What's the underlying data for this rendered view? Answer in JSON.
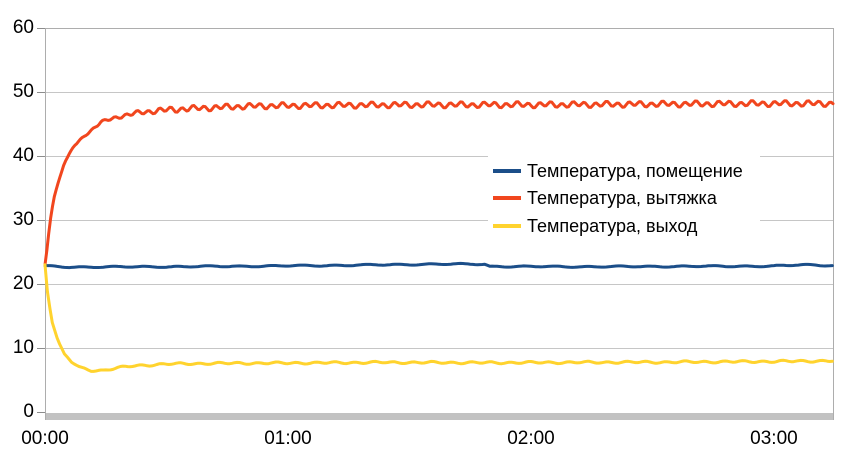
{
  "chart_data": {
    "type": "line",
    "title": "",
    "x_axis": {
      "kind": "time-of-day",
      "tick_labels": [
        "00:00",
        "01:00",
        "02:00",
        "03:00"
      ],
      "tick_hours": [
        0,
        1,
        2,
        3
      ],
      "range_hours": [
        0,
        3.243
      ],
      "gridlines": false
    },
    "y_axis": {
      "min": 0,
      "max": 60,
      "tick_step": 10,
      "tick_values": [
        0,
        10,
        20,
        30,
        40,
        50,
        60
      ],
      "tick_labels": [
        "0",
        "10",
        "20",
        "30",
        "40",
        "50",
        "60"
      ],
      "gridlines": true
    },
    "legend": {
      "position": "center-right-overlay",
      "background": "#FFFFFF"
    },
    "series": [
      {
        "name": "Температура, помещение",
        "color": "#1B4E89",
        "trend": [
          [
            0,
            22.8
          ],
          [
            0.1,
            22.65
          ],
          [
            0.5,
            22.7
          ],
          [
            0.9,
            22.8
          ],
          [
            1.3,
            22.95
          ],
          [
            1.6,
            23.1
          ],
          [
            1.81,
            23.1
          ],
          [
            1.83,
            22.75
          ],
          [
            2.2,
            22.7
          ],
          [
            2.6,
            22.75
          ],
          [
            3.0,
            22.8
          ],
          [
            3.12,
            23.0
          ],
          [
            3.243,
            22.9
          ]
        ],
        "noise": {
          "amp": 0.1,
          "period": 0.13,
          "ramp": 0,
          "phase": 0.5
        }
      },
      {
        "name": "Температура, вытяжка",
        "color": "#F1461E",
        "trend": [
          [
            0,
            23
          ],
          [
            0.01,
            26
          ],
          [
            0.02,
            29.5
          ],
          [
            0.03,
            32
          ],
          [
            0.04,
            34
          ],
          [
            0.06,
            36.5
          ],
          [
            0.08,
            39
          ],
          [
            0.12,
            41.6
          ],
          [
            0.165,
            43.2
          ],
          [
            0.23,
            45.3
          ],
          [
            0.31,
            46.2
          ],
          [
            0.39,
            46.8
          ],
          [
            0.5,
            47.2
          ],
          [
            0.65,
            47.5
          ],
          [
            0.85,
            47.8
          ],
          [
            1.1,
            47.9
          ],
          [
            1.5,
            48.0
          ],
          [
            2.0,
            48.0
          ],
          [
            2.5,
            48.1
          ],
          [
            3.0,
            48.2
          ],
          [
            3.243,
            48.2
          ]
        ],
        "noise": {
          "amp": 0.45,
          "period": 0.046,
          "ramp": 0.5,
          "phase": 0
        }
      },
      {
        "name": "Температура, выход",
        "color": "#FFD32E",
        "trend": [
          [
            0,
            23
          ],
          [
            0.012,
            18
          ],
          [
            0.03,
            14
          ],
          [
            0.055,
            11
          ],
          [
            0.08,
            9
          ],
          [
            0.11,
            7.8
          ],
          [
            0.145,
            6.9
          ],
          [
            0.19,
            6.5
          ],
          [
            0.24,
            6.5
          ],
          [
            0.3,
            6.9
          ],
          [
            0.36,
            7.2
          ],
          [
            0.5,
            7.5
          ],
          [
            0.7,
            7.6
          ],
          [
            1.0,
            7.65
          ],
          [
            1.4,
            7.75
          ],
          [
            1.8,
            7.7
          ],
          [
            2.2,
            7.75
          ],
          [
            2.6,
            7.8
          ],
          [
            3.0,
            7.9
          ],
          [
            3.243,
            8.0
          ]
        ],
        "noise": {
          "amp": 0.16,
          "period": 0.08,
          "ramp": 0.15,
          "phase": 2.0
        }
      }
    ]
  }
}
